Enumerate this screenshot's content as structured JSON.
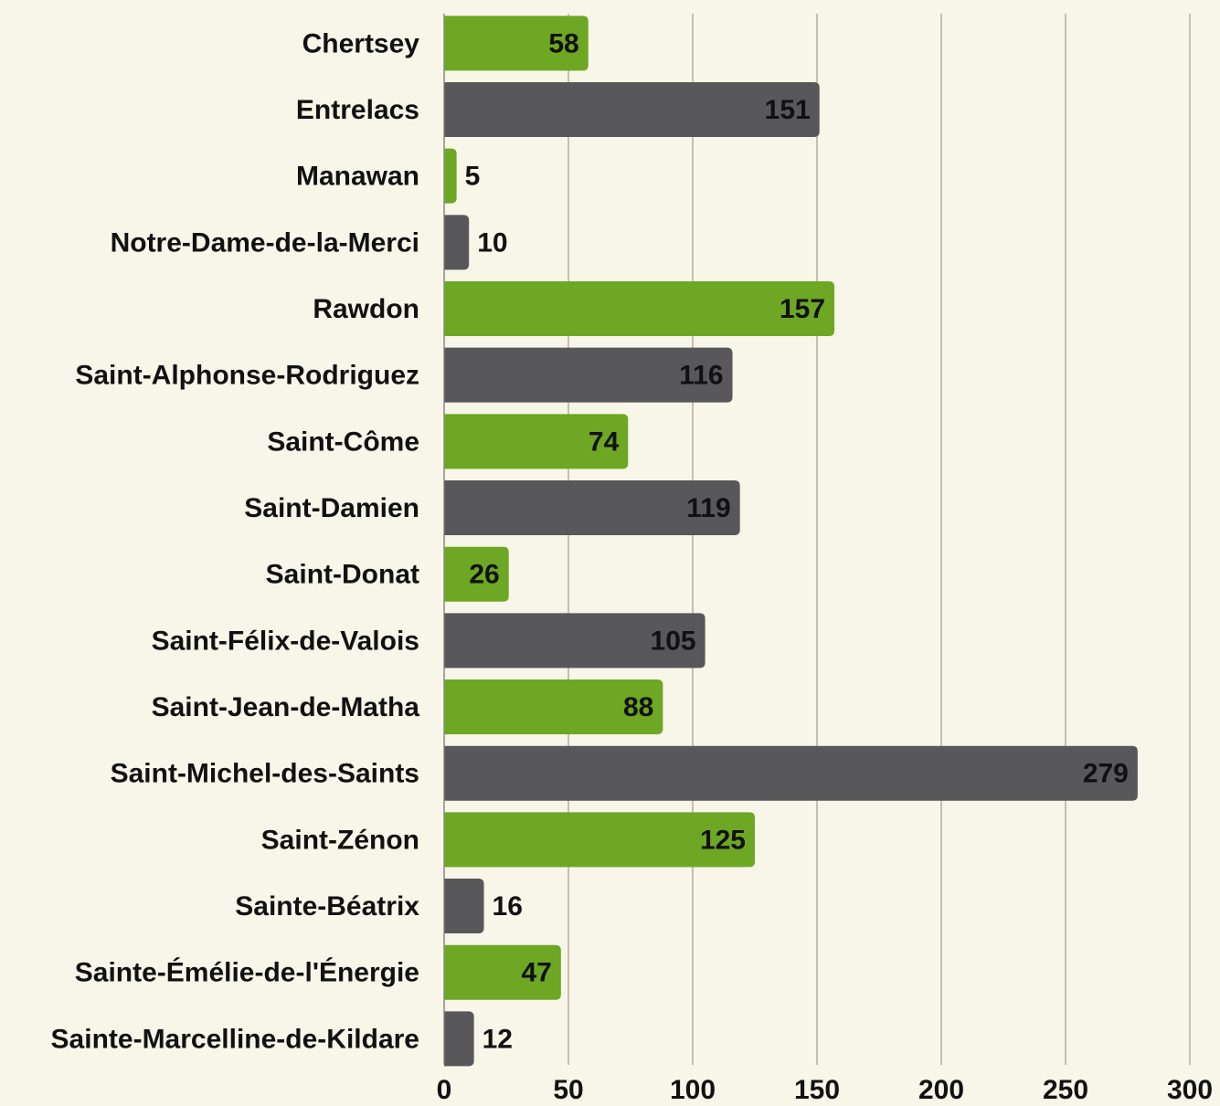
{
  "chart_data": {
    "type": "bar",
    "orientation": "horizontal",
    "categories": [
      "Chertsey",
      "Entrelacs",
      "Manawan",
      "Notre-Dame-de-la-Merci",
      "Rawdon",
      "Saint-Alphonse-Rodriguez",
      "Saint-Côme",
      "Saint-Damien",
      "Saint-Donat",
      "Saint-Félix-de-Valois",
      "Saint-Jean-de-Matha",
      "Saint-Michel-des-Saints",
      "Saint-Zénon",
      "Sainte-Béatrix",
      "Sainte-Émélie-de-l'Énergie",
      "Sainte-Marcelline-de-Kildare"
    ],
    "values": [
      58,
      151,
      5,
      10,
      157,
      116,
      74,
      119,
      26,
      105,
      88,
      279,
      125,
      16,
      47,
      12
    ],
    "colors": [
      "#6da723",
      "#58585a",
      "#6da723",
      "#58585a",
      "#6da723",
      "#58585a",
      "#6da723",
      "#58585a",
      "#6da723",
      "#58585a",
      "#6da723",
      "#58585a",
      "#6da723",
      "#58585a",
      "#6da723",
      "#58585a"
    ],
    "xlim": [
      0,
      300
    ],
    "xticks": [
      0,
      50,
      100,
      150,
      200,
      250,
      300
    ],
    "grid": true
  }
}
